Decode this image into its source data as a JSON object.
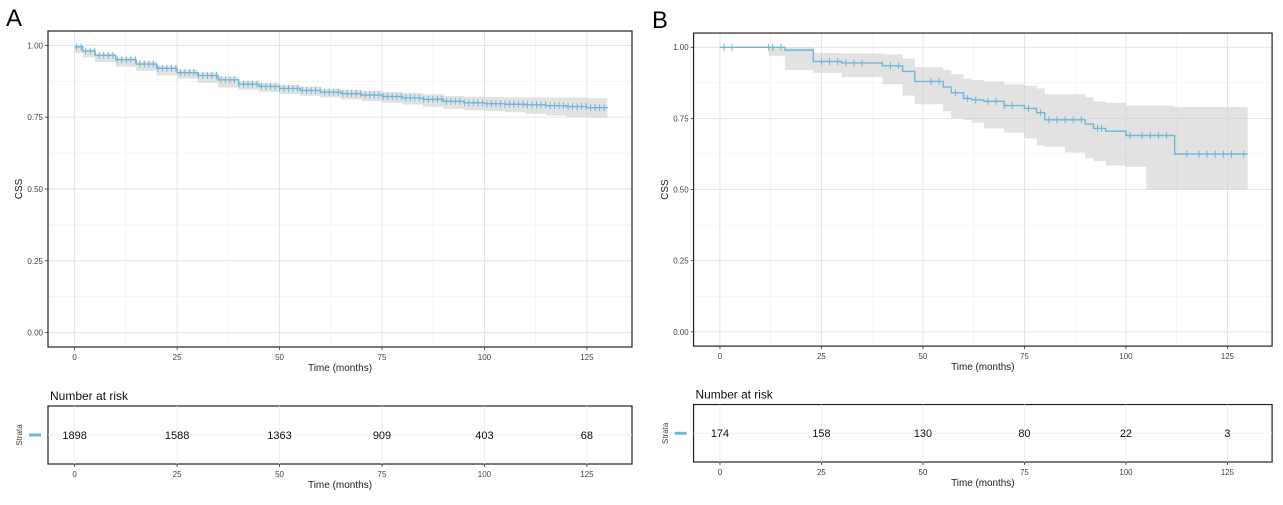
{
  "chart_data": [
    {
      "panel": "A",
      "type": "line",
      "ylabel": "CSS",
      "xlabel": "Time (months)",
      "xlim": [
        -6.5,
        136
      ],
      "ylim": [
        -0.05,
        1.05
      ],
      "x_ticks": [
        0,
        25,
        50,
        75,
        100,
        125
      ],
      "y_ticks": [
        "0.00",
        "0.25",
        "0.50",
        "0.75",
        "1.00"
      ],
      "grid": true,
      "line_color": "#6fb7d6",
      "ci_color": "#cfcfcf",
      "series": [
        {
          "x": [
            0,
            2,
            5,
            10,
            15,
            20,
            25,
            30,
            35,
            40,
            45,
            50,
            55,
            60,
            65,
            70,
            75,
            80,
            85,
            90,
            95,
            100,
            105,
            110,
            115,
            120,
            125,
            130
          ],
          "y": [
            0.995,
            0.98,
            0.965,
            0.95,
            0.935,
            0.92,
            0.905,
            0.895,
            0.88,
            0.865,
            0.857,
            0.85,
            0.843,
            0.837,
            0.832,
            0.827,
            0.822,
            0.817,
            0.812,
            0.805,
            0.8,
            0.797,
            0.795,
            0.793,
            0.79,
            0.787,
            0.783,
            0.782
          ],
          "lower": [
            0.99,
            0.974,
            0.958,
            0.942,
            0.926,
            0.911,
            0.895,
            0.884,
            0.869,
            0.853,
            0.845,
            0.838,
            0.83,
            0.824,
            0.818,
            0.812,
            0.806,
            0.8,
            0.794,
            0.786,
            0.779,
            0.774,
            0.771,
            0.767,
            0.762,
            0.756,
            0.75,
            0.748
          ],
          "upper": [
            1.0,
            0.986,
            0.972,
            0.958,
            0.944,
            0.929,
            0.915,
            0.906,
            0.891,
            0.877,
            0.869,
            0.862,
            0.856,
            0.85,
            0.846,
            0.842,
            0.838,
            0.834,
            0.83,
            0.824,
            0.821,
            0.82,
            0.819,
            0.819,
            0.818,
            0.818,
            0.816,
            0.816
          ]
        }
      ],
      "risk_table": {
        "title": "Number at risk",
        "strata_label": "Strata",
        "x": [
          0,
          25,
          50,
          75,
          100,
          125
        ],
        "values": [
          "1898",
          "1588",
          "1363",
          "909",
          "403",
          "68"
        ]
      }
    },
    {
      "panel": "B",
      "type": "line",
      "ylabel": "CSS",
      "xlabel": "Time (months)",
      "xlim": [
        -6.5,
        136
      ],
      "ylim": [
        -0.05,
        1.05
      ],
      "x_ticks": [
        0,
        25,
        50,
        75,
        100,
        125
      ],
      "y_ticks": [
        "0.00",
        "0.25",
        "0.50",
        "0.75",
        "1.00"
      ],
      "grid": true,
      "line_color": "#6fb7d6",
      "ci_color": "#cfcfcf",
      "series": [
        {
          "x": [
            0,
            12,
            16,
            23,
            30,
            40,
            45,
            48,
            55,
            57,
            60,
            62,
            65,
            70,
            75,
            78,
            80,
            85,
            90,
            92,
            95,
            100,
            105,
            112,
            130
          ],
          "y": [
            1.0,
            1.0,
            0.99,
            0.95,
            0.945,
            0.935,
            0.915,
            0.88,
            0.86,
            0.84,
            0.82,
            0.815,
            0.81,
            0.795,
            0.785,
            0.77,
            0.745,
            0.745,
            0.73,
            0.715,
            0.705,
            0.69,
            0.69,
            0.625,
            0.625
          ],
          "lower": [
            1.0,
            1.0,
            0.97,
            0.92,
            0.91,
            0.895,
            0.87,
            0.83,
            0.8,
            0.775,
            0.75,
            0.745,
            0.735,
            0.715,
            0.7,
            0.68,
            0.655,
            0.65,
            0.63,
            0.61,
            0.6,
            0.585,
            0.58,
            0.5,
            0.5
          ],
          "upper": [
            1.0,
            1.0,
            1.0,
            0.98,
            0.978,
            0.975,
            0.96,
            0.93,
            0.92,
            0.905,
            0.89,
            0.885,
            0.88,
            0.87,
            0.865,
            0.855,
            0.835,
            0.835,
            0.825,
            0.81,
            0.805,
            0.795,
            0.795,
            0.79,
            0.79
          ]
        }
      ],
      "censored_x": [
        1,
        3,
        12,
        13,
        15,
        25,
        27,
        29,
        31,
        33,
        35,
        42,
        44,
        52,
        54,
        58,
        61,
        63,
        66,
        68,
        70,
        72,
        76,
        79,
        81,
        83,
        85,
        87,
        89,
        93,
        94,
        101,
        104,
        106,
        108,
        110,
        115,
        118,
        120,
        122,
        124,
        126,
        129
      ],
      "risk_table": {
        "title": "Number at risk",
        "strata_label": "Strata",
        "x": [
          0,
          25,
          50,
          75,
          100,
          125
        ],
        "values": [
          "174",
          "158",
          "130",
          "80",
          "22",
          "3"
        ]
      }
    }
  ],
  "panels": [
    {
      "letter": "A"
    },
    {
      "letter": "B"
    }
  ]
}
